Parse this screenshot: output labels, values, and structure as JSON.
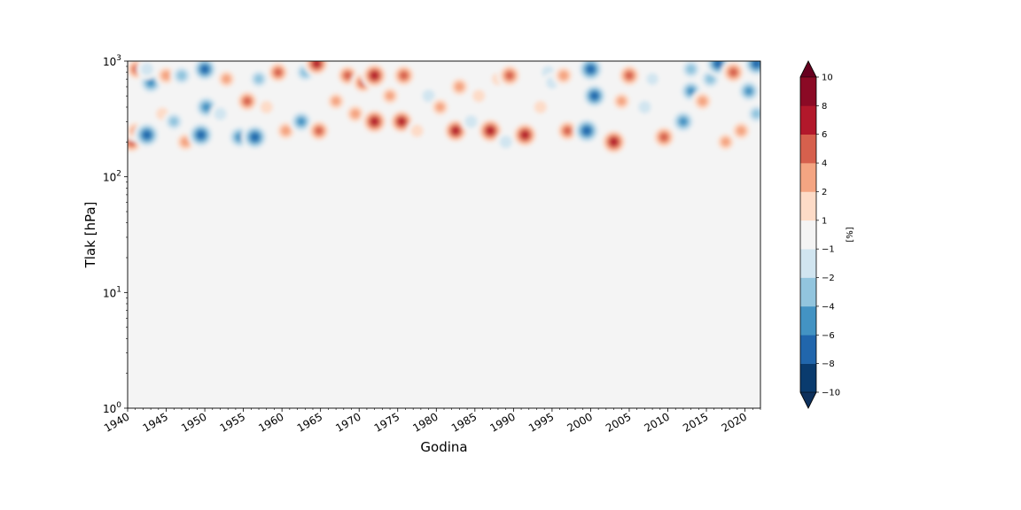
{
  "chart_data": {
    "type": "heatmap",
    "title": "",
    "xlabel": "Godina",
    "ylabel": "Tlak [hPa]",
    "colorbar_label": "[%]",
    "x_range": [
      1940,
      2022
    ],
    "x_ticks": [
      1940,
      1945,
      1950,
      1955,
      1960,
      1965,
      1970,
      1975,
      1980,
      1985,
      1990,
      1995,
      2000,
      2005,
      2010,
      2015,
      2020
    ],
    "x_tick_labels": [
      "1940",
      "1945",
      "1950",
      "1955",
      "1960",
      "1965",
      "1970",
      "1975",
      "1980",
      "1985",
      "1990",
      "1995",
      "2000",
      "2005",
      "2010",
      "2015",
      "2020"
    ],
    "y_scale": "log",
    "y_inverted": true,
    "y_range": [
      1000,
      1
    ],
    "y_ticks": [
      {
        "value": 1,
        "base": "10",
        "exp": "0"
      },
      {
        "value": 10,
        "base": "10",
        "exp": "1"
      },
      {
        "value": 100,
        "base": "10",
        "exp": "2"
      },
      {
        "value": 1000,
        "base": "10",
        "exp": "3"
      }
    ],
    "color_levels": [
      -10,
      -8,
      -6,
      -4,
      -2,
      -1,
      1,
      2,
      4,
      6,
      8,
      10
    ],
    "colorbar_tick_labels": [
      "−10",
      "−8",
      "−6",
      "−4",
      "−2",
      "−1",
      "1",
      "2",
      "4",
      "6",
      "8",
      "10"
    ],
    "colorbar_colors": [
      "#0a3b6e",
      "#2166ac",
      "#4393c3",
      "#92c5de",
      "#d1e5f0",
      "#f4f4f4",
      "#fddbc7",
      "#f4a582",
      "#d6604d",
      "#b2182b",
      "#8b0a25"
    ],
    "colorbar_extend_low": "#0d305c",
    "colorbar_extend_high": "#67001f",
    "background_color": "#f4f4f4",
    "anomaly_top_pressure_hPa": 100,
    "features": [
      {
        "year": 1940.5,
        "p": 200,
        "v": 7
      },
      {
        "year": 1941,
        "p": 250,
        "v": 4
      },
      {
        "year": 1941.2,
        "p": 850,
        "v": 6
      },
      {
        "year": 1942.5,
        "p": 230,
        "v": -9
      },
      {
        "year": 1943,
        "p": 650,
        "v": -7
      },
      {
        "year": 1942.5,
        "p": 850,
        "v": -3
      },
      {
        "year": 1944.5,
        "p": 350,
        "v": 3
      },
      {
        "year": 1945,
        "p": 750,
        "v": 5
      },
      {
        "year": 1946,
        "p": 300,
        "v": -4
      },
      {
        "year": 1947,
        "p": 750,
        "v": -5
      },
      {
        "year": 1947.5,
        "p": 200,
        "v": 5
      },
      {
        "year": 1949.5,
        "p": 230,
        "v": -9
      },
      {
        "year": 1950.2,
        "p": 400,
        "v": -7
      },
      {
        "year": 1950,
        "p": 850,
        "v": -8
      },
      {
        "year": 1952,
        "p": 350,
        "v": -3
      },
      {
        "year": 1952.8,
        "p": 700,
        "v": 4
      },
      {
        "year": 1954.5,
        "p": 220,
        "v": -7
      },
      {
        "year": 1955.5,
        "p": 450,
        "v": 6
      },
      {
        "year": 1956.5,
        "p": 220,
        "v": -9
      },
      {
        "year": 1957,
        "p": 700,
        "v": -4
      },
      {
        "year": 1958,
        "p": 400,
        "v": 3
      },
      {
        "year": 1959.5,
        "p": 800,
        "v": 6
      },
      {
        "year": 1960.5,
        "p": 250,
        "v": 5
      },
      {
        "year": 1962.5,
        "p": 300,
        "v": -6
      },
      {
        "year": 1963,
        "p": 800,
        "v": -5
      },
      {
        "year": 1964.8,
        "p": 250,
        "v": 6
      },
      {
        "year": 1964.5,
        "p": 950,
        "v": 8
      },
      {
        "year": 1967,
        "p": 450,
        "v": 4
      },
      {
        "year": 1968.5,
        "p": 750,
        "v": 6
      },
      {
        "year": 1969.5,
        "p": 350,
        "v": 5
      },
      {
        "year": 1970.5,
        "p": 650,
        "v": 6
      },
      {
        "year": 1972,
        "p": 300,
        "v": 9
      },
      {
        "year": 1972,
        "p": 750,
        "v": 9
      },
      {
        "year": 1974,
        "p": 500,
        "v": 4
      },
      {
        "year": 1975.5,
        "p": 300,
        "v": 8
      },
      {
        "year": 1975.8,
        "p": 750,
        "v": 7
      },
      {
        "year": 1977.5,
        "p": 250,
        "v": 3
      },
      {
        "year": 1979,
        "p": 500,
        "v": -3
      },
      {
        "year": 1980.5,
        "p": 400,
        "v": 4
      },
      {
        "year": 1982.5,
        "p": 250,
        "v": 8
      },
      {
        "year": 1983,
        "p": 600,
        "v": 5
      },
      {
        "year": 1984.5,
        "p": 300,
        "v": -3
      },
      {
        "year": 1985.5,
        "p": 500,
        "v": 3
      },
      {
        "year": 1987,
        "p": 250,
        "v": 9
      },
      {
        "year": 1988,
        "p": 700,
        "v": 3
      },
      {
        "year": 1989,
        "p": 200,
        "v": -3
      },
      {
        "year": 1989.5,
        "p": 750,
        "v": 7
      },
      {
        "year": 1991.5,
        "p": 230,
        "v": 9
      },
      {
        "year": 1993.5,
        "p": 400,
        "v": 3
      },
      {
        "year": 1994.5,
        "p": 800,
        "v": -3
      },
      {
        "year": 1995,
        "p": 650,
        "v": -2
      },
      {
        "year": 1996.5,
        "p": 750,
        "v": 5
      },
      {
        "year": 1997,
        "p": 250,
        "v": 6
      },
      {
        "year": 1999.5,
        "p": 250,
        "v": -9
      },
      {
        "year": 2000.5,
        "p": 500,
        "v": -8
      },
      {
        "year": 2000,
        "p": 850,
        "v": -9
      },
      {
        "year": 2003,
        "p": 200,
        "v": 9
      },
      {
        "year": 2004,
        "p": 450,
        "v": 4
      },
      {
        "year": 2005,
        "p": 750,
        "v": 7
      },
      {
        "year": 2007,
        "p": 400,
        "v": -3
      },
      {
        "year": 2008,
        "p": 700,
        "v": -2
      },
      {
        "year": 2009.5,
        "p": 220,
        "v": 7
      },
      {
        "year": 2012,
        "p": 300,
        "v": -7
      },
      {
        "year": 2013,
        "p": 550,
        "v": -6
      },
      {
        "year": 2013,
        "p": 850,
        "v": -5
      },
      {
        "year": 2014.5,
        "p": 450,
        "v": 5
      },
      {
        "year": 2015.5,
        "p": 700,
        "v": -5
      },
      {
        "year": 2016.5,
        "p": 950,
        "v": -8
      },
      {
        "year": 2017.5,
        "p": 200,
        "v": 4
      },
      {
        "year": 2018.5,
        "p": 800,
        "v": 7
      },
      {
        "year": 2019.5,
        "p": 250,
        "v": 5
      },
      {
        "year": 2020.5,
        "p": 550,
        "v": -6
      },
      {
        "year": 2021.5,
        "p": 950,
        "v": -9
      },
      {
        "year": 2021.5,
        "p": 350,
        "v": -4
      }
    ]
  }
}
